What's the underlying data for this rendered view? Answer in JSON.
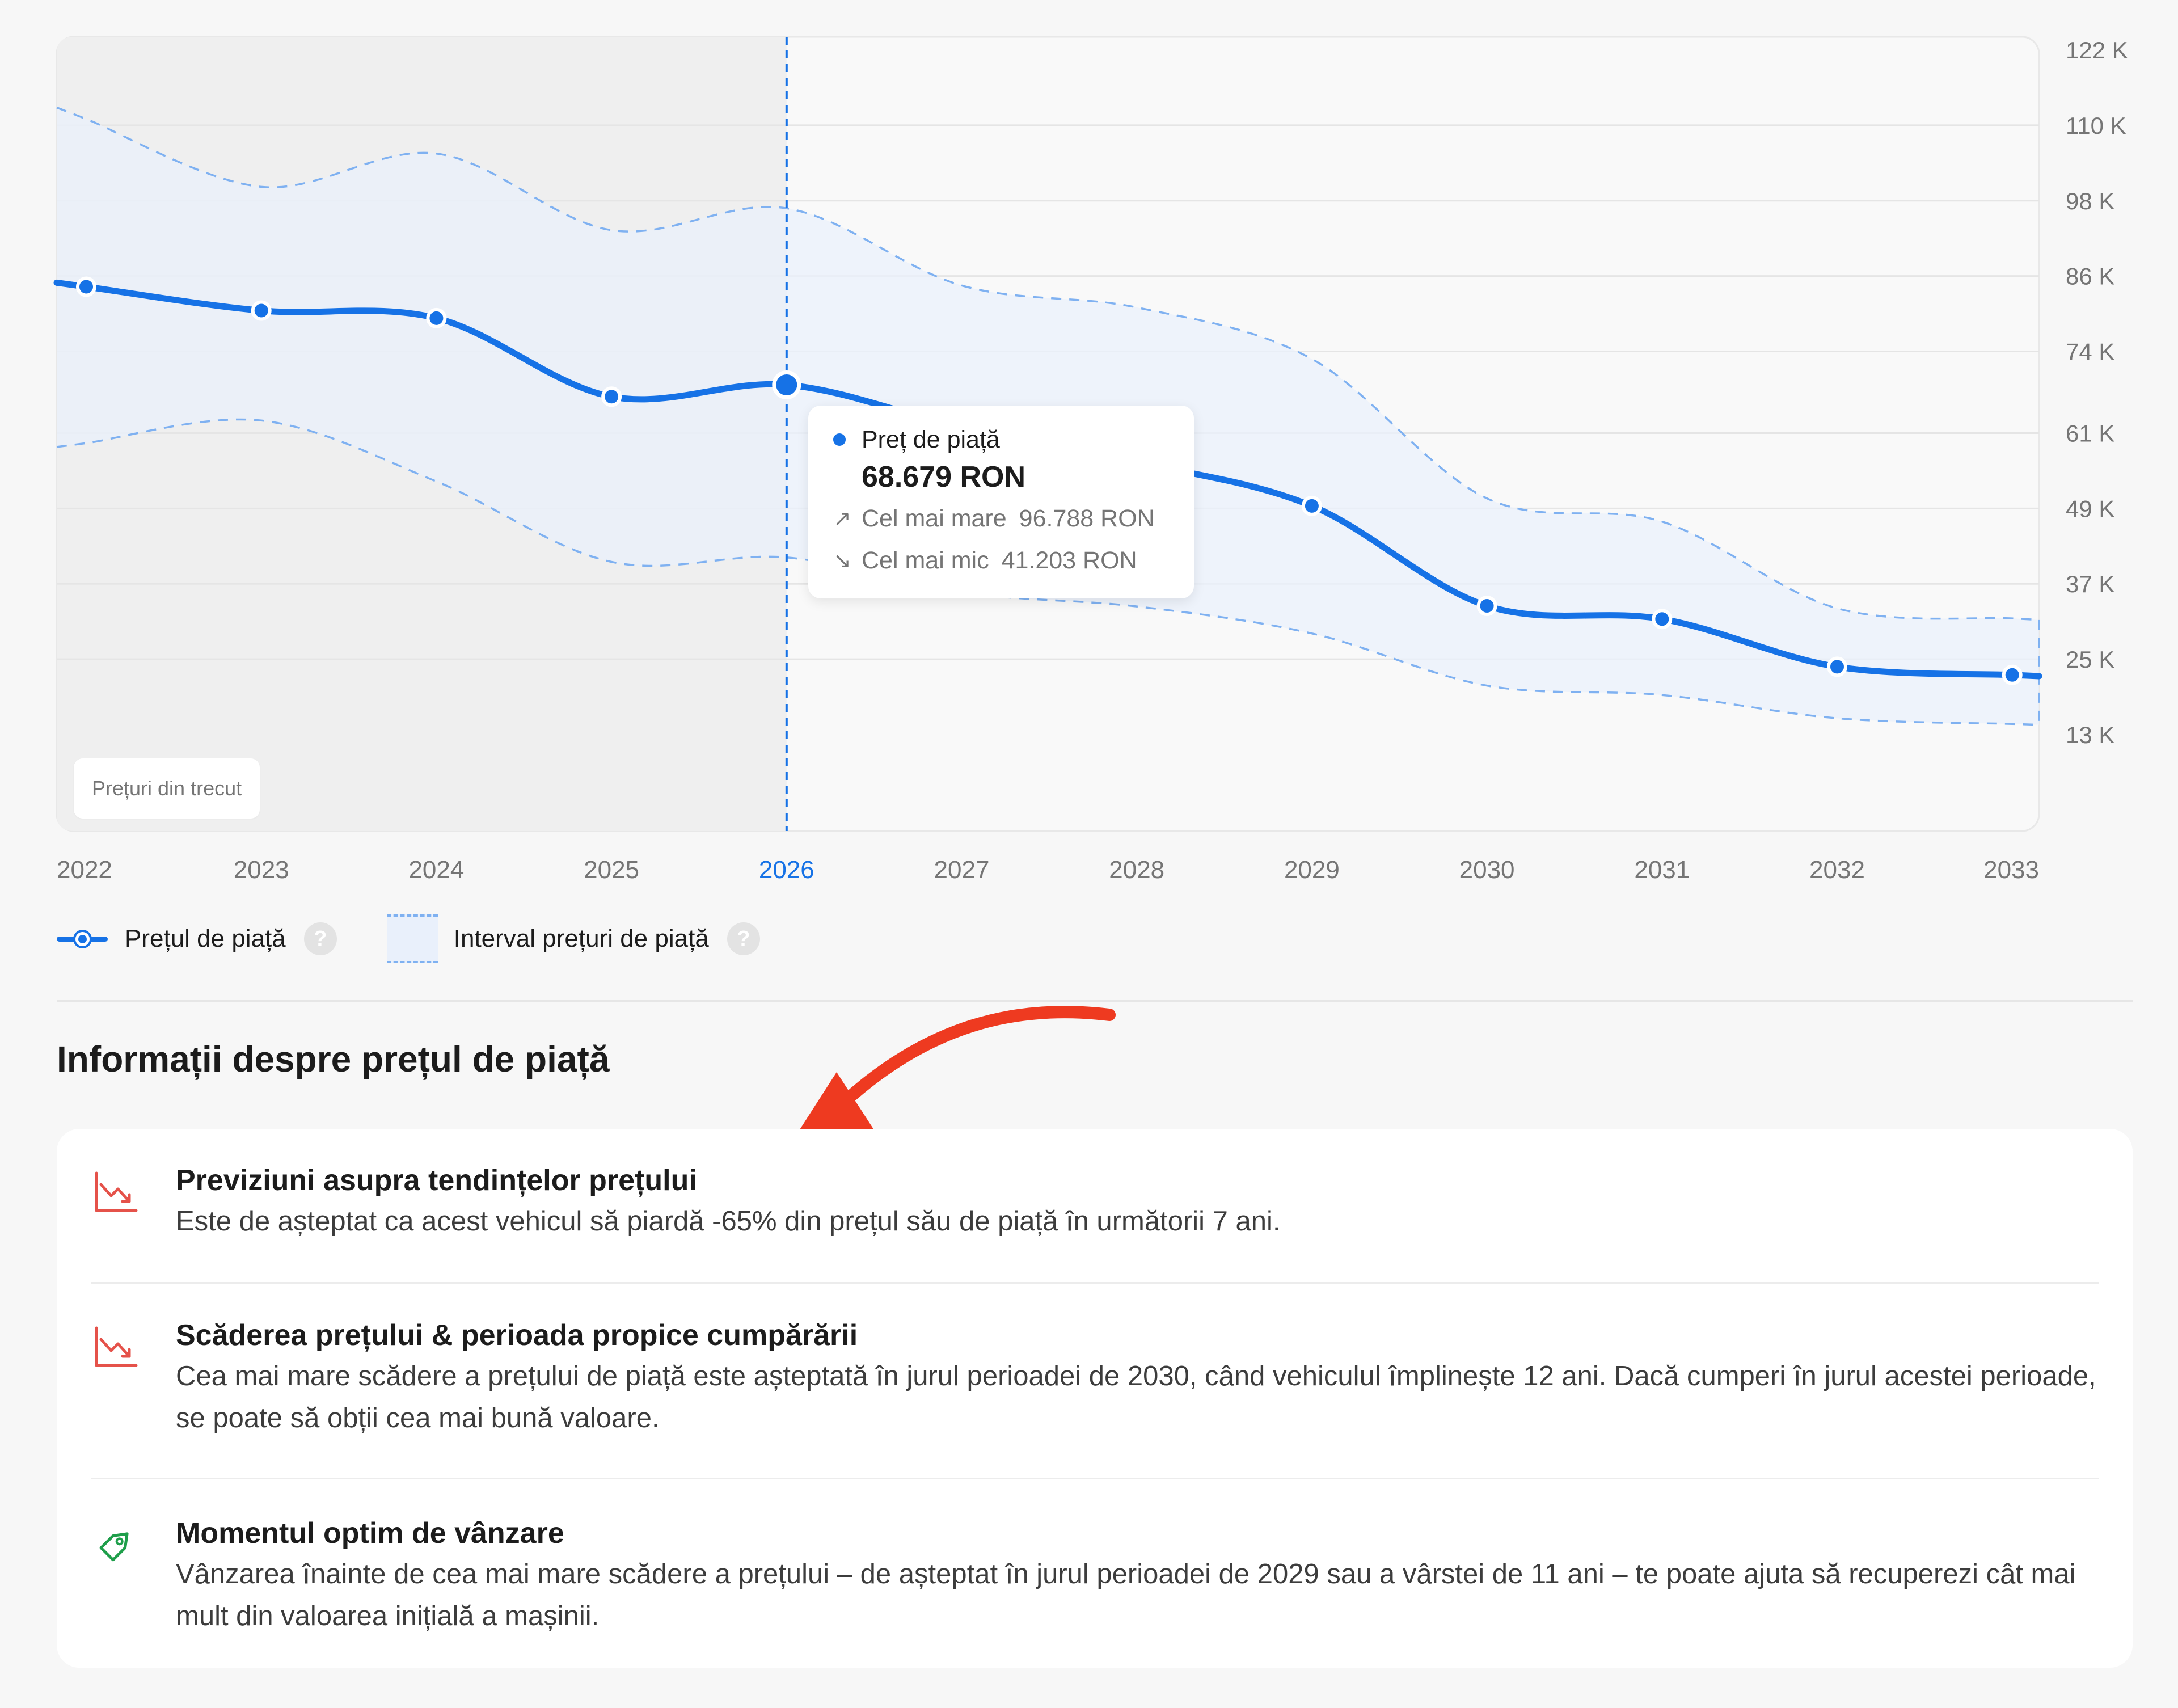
{
  "chart_data": {
    "type": "line",
    "x": [
      2022,
      2023,
      2024,
      2025,
      2026,
      2027,
      2028,
      2029,
      2030,
      2031,
      2032,
      2033
    ],
    "series": [
      {
        "name": "Prețul de piață",
        "values": [
          84300,
          80500,
          79300,
          66800,
          68679,
          61900,
          56400,
          49400,
          33500,
          31400,
          23800,
          22500
        ]
      }
    ],
    "range_upper": [
      111000,
      100200,
      105500,
      93300,
      96788,
      84500,
      81000,
      72800,
      50600,
      46900,
      33100,
      31500
    ],
    "range_lower": [
      59400,
      63000,
      53300,
      40500,
      41203,
      35600,
      33400,
      29100,
      20800,
      19300,
      15600,
      14700
    ],
    "y_ticks": [
      "122 K",
      "110 K",
      "98 K",
      "86 K",
      "74 K",
      "61 K",
      "49 K",
      "37 K",
      "25 K",
      "13 K"
    ],
    "y_tick_values": [
      122000,
      110000,
      98000,
      86000,
      74000,
      61000,
      49000,
      37000,
      25000,
      13000
    ],
    "ylim": [
      0,
      122000
    ],
    "xlabel": "",
    "ylabel": "",
    "title": "",
    "grid": true,
    "highlight_year": 2026,
    "legend_placement": "bottom-left",
    "colors": {
      "line": "#1672e6",
      "range_fill": "#e9f0fb",
      "range_border": "#7fb1f1",
      "past_shade": "#efefef",
      "grid": "#e5e5e5"
    }
  },
  "past_badge": "Prețuri din trecut",
  "tooltip": {
    "label": "Preț de piață",
    "value": "68.679 RON",
    "max_label": "Cel mai mare",
    "max_value": "96.788 RON",
    "min_label": "Cel mai mic",
    "min_value": "41.203 RON"
  },
  "legend": {
    "market_price": "Prețul de piață",
    "price_range": "Interval prețuri de piață",
    "help": "?"
  },
  "section_title": "Informații despre prețul de piață",
  "annotation_color": "#ee3a20",
  "insights": [
    {
      "icon": "trend-down-icon",
      "title": "Previziuni asupra tendințelor prețului",
      "text": "Este de așteptat ca acest vehicul să piardă -65% din prețul său de piață în următorii 7 ani."
    },
    {
      "icon": "trend-down-icon",
      "title": "Scăderea prețului & perioada propice cumpărării",
      "text": "Cea mai mare scădere a prețului de piață este așteptată în jurul perioadei de 2030, când vehiculul împlinește 12 ani. Dacă cumperi în jurul acestei perioade, se poate să obții cea mai bună valoare."
    },
    {
      "icon": "price-tag-icon",
      "title": "Momentul optim de vânzare",
      "text": "Vânzarea înainte de cea mai mare scădere a prețului – de așteptat în jurul perioadei de 2029 sau a vârstei de 11 ani – te poate ajuta să recuperezi cât mai mult din valoarea inițială a mașinii."
    }
  ]
}
